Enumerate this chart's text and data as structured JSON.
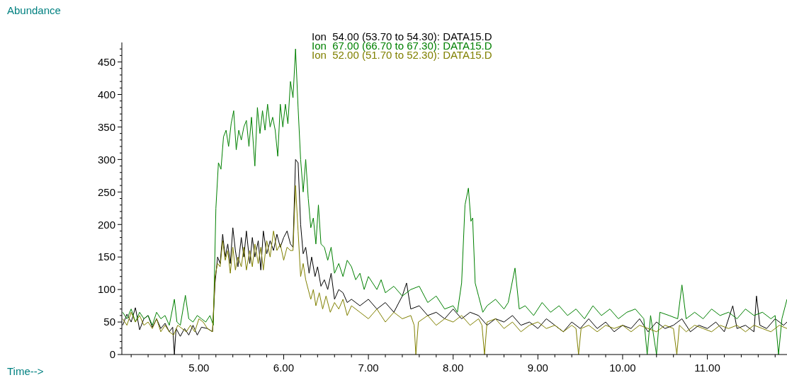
{
  "chart_data": {
    "type": "line",
    "annotations": [
      "Time-->"
    ],
    "ylabel": "Abundance",
    "xlim": [
      4.09,
      11.94
    ],
    "ylim": [
      0,
      480
    ],
    "xticks": [
      {
        "value": 4.2,
        "label": null
      },
      {
        "value": 4.4,
        "label": null
      },
      {
        "value": 4.6,
        "label": null
      },
      {
        "value": 4.8,
        "label": null
      },
      {
        "value": 5,
        "label": "5.00"
      },
      {
        "value": 5.2,
        "label": null
      },
      {
        "value": 5.4,
        "label": null
      },
      {
        "value": 5.6,
        "label": null
      },
      {
        "value": 5.8,
        "label": null
      },
      {
        "value": 6,
        "label": "6.00"
      },
      {
        "value": 6.2,
        "label": null
      },
      {
        "value": 6.4,
        "label": null
      },
      {
        "value": 6.6,
        "label": null
      },
      {
        "value": 6.8,
        "label": null
      },
      {
        "value": 7,
        "label": "7.00"
      },
      {
        "value": 7.2,
        "label": null
      },
      {
        "value": 7.4,
        "label": null
      },
      {
        "value": 7.6,
        "label": null
      },
      {
        "value": 7.8,
        "label": null
      },
      {
        "value": 8,
        "label": "8.00"
      },
      {
        "value": 8.2,
        "label": null
      },
      {
        "value": 8.4,
        "label": null
      },
      {
        "value": 8.6,
        "label": null
      },
      {
        "value": 8.8,
        "label": null
      },
      {
        "value": 9,
        "label": "9.00"
      },
      {
        "value": 9.2,
        "label": null
      },
      {
        "value": 9.4,
        "label": null
      },
      {
        "value": 9.6,
        "label": null
      },
      {
        "value": 9.8,
        "label": null
      },
      {
        "value": 10,
        "label": "10.00"
      },
      {
        "value": 10.2,
        "label": null
      },
      {
        "value": 10.4,
        "label": null
      },
      {
        "value": 10.6,
        "label": null
      },
      {
        "value": 10.8,
        "label": null
      },
      {
        "value": 11,
        "label": "11.00"
      },
      {
        "value": 11.2,
        "label": null
      },
      {
        "value": 11.4,
        "label": null
      },
      {
        "value": 11.6,
        "label": null
      },
      {
        "value": 11.8,
        "label": null
      }
    ],
    "yticks": [
      0,
      {
        "value": 10,
        "label": null
      },
      {
        "value": 20,
        "label": null
      },
      {
        "value": 30,
        "label": null
      },
      {
        "value": 40,
        "label": null
      },
      50,
      {
        "value": 60,
        "label": null
      },
      {
        "value": 70,
        "label": null
      },
      {
        "value": 80,
        "label": null
      },
      {
        "value": 90,
        "label": null
      },
      100,
      {
        "value": 110,
        "label": null
      },
      {
        "value": 120,
        "label": null
      },
      {
        "value": 130,
        "label": null
      },
      {
        "value": 140,
        "label": null
      },
      150,
      {
        "value": 160,
        "label": null
      },
      {
        "value": 170,
        "label": null
      },
      {
        "value": 180,
        "label": null
      },
      {
        "value": 190,
        "label": null
      },
      200,
      {
        "value": 210,
        "label": null
      },
      {
        "value": 220,
        "label": null
      },
      {
        "value": 230,
        "label": null
      },
      {
        "value": 240,
        "label": null
      },
      250,
      {
        "value": 260,
        "label": null
      },
      {
        "value": 270,
        "label": null
      },
      {
        "value": 280,
        "label": null
      },
      {
        "value": 290,
        "label": null
      },
      300,
      {
        "value": 310,
        "label": null
      },
      {
        "value": 320,
        "label": null
      },
      {
        "value": 330,
        "label": null
      },
      {
        "value": 340,
        "label": null
      },
      350,
      {
        "value": 360,
        "label": null
      },
      {
        "value": 370,
        "label": null
      },
      {
        "value": 380,
        "label": null
      },
      {
        "value": 390,
        "label": null
      },
      400,
      {
        "value": 410,
        "label": null
      },
      {
        "value": 420,
        "label": null
      },
      {
        "value": 430,
        "label": null
      },
      {
        "value": 440,
        "label": null
      },
      450,
      {
        "value": 460,
        "label": null
      },
      {
        "value": 470,
        "label": null
      }
    ],
    "grid": false,
    "legend": "top",
    "marker": "none",
    "line_style": "solid",
    "series": [
      {
        "name": "Ion  54.00 (53.70 to 54.30): DATA15.D",
        "color": "#000000",
        "x": [
          4.1,
          4.15,
          4.2,
          4.25,
          4.3,
          4.35,
          4.4,
          4.45,
          4.5,
          4.55,
          4.6,
          4.65,
          4.69,
          4.71,
          4.73,
          4.78,
          4.83,
          4.88,
          4.93,
          4.98,
          5.03,
          5.1,
          5.16,
          5.19,
          5.22,
          5.25,
          5.28,
          5.31,
          5.34,
          5.37,
          5.4,
          5.43,
          5.46,
          5.5,
          5.53,
          5.56,
          5.6,
          5.63,
          5.66,
          5.7,
          5.73,
          5.76,
          5.8,
          5.84,
          5.88,
          5.92,
          5.96,
          6.0,
          6.04,
          6.08,
          6.11,
          6.14,
          6.17,
          6.2,
          6.23,
          6.26,
          6.3,
          6.33,
          6.37,
          6.4,
          6.44,
          6.48,
          6.52,
          6.56,
          6.6,
          6.65,
          6.7,
          6.75,
          6.8,
          6.9,
          7.0,
          7.1,
          7.2,
          7.3,
          7.4,
          7.45,
          7.5,
          7.6,
          7.7,
          7.8,
          7.9,
          8.0,
          8.1,
          8.2,
          8.3,
          8.4,
          8.5,
          8.6,
          8.7,
          8.8,
          8.9,
          9.0,
          9.1,
          9.2,
          9.3,
          9.4,
          9.5,
          9.6,
          9.7,
          9.8,
          9.9,
          10.0,
          10.1,
          10.2,
          10.3,
          10.4,
          10.5,
          10.6,
          10.7,
          10.8,
          10.9,
          11.0,
          11.1,
          11.2,
          11.3,
          11.35,
          11.45,
          11.55,
          11.58,
          11.62,
          11.7,
          11.8,
          11.9,
          11.94
        ],
        "values": [
          45,
          62,
          50,
          72,
          38,
          55,
          60,
          42,
          55,
          40,
          48,
          35,
          42,
          0,
          40,
          28,
          40,
          30,
          45,
          30,
          42,
          40,
          35,
          110,
          150,
          140,
          185,
          150,
          170,
          140,
          195,
          160,
          135,
          180,
          150,
          190,
          140,
          180,
          150,
          175,
          130,
          190,
          155,
          175,
          160,
          185,
          165,
          180,
          190,
          170,
          165,
          300,
          295,
          200,
          155,
          165,
          125,
          150,
          120,
          135,
          105,
          115,
          100,
          125,
          85,
          100,
          95,
          80,
          85,
          75,
          85,
          70,
          80,
          65,
          90,
          110,
          70,
          75,
          60,
          65,
          55,
          70,
          55,
          65,
          60,
          45,
          55,
          50,
          60,
          45,
          50,
          40,
          55,
          45,
          35,
          50,
          40,
          55,
          40,
          50,
          35,
          45,
          40,
          55,
          35,
          50,
          40,
          45,
          55,
          35,
          45,
          40,
          50,
          35,
          75,
          40,
          45,
          35,
          90,
          45,
          40,
          55,
          45,
          50
        ]
      },
      {
        "name": "Ion  67.00 (66.70 to 67.30): DATA15.D",
        "color": "#008000",
        "x": [
          4.1,
          4.15,
          4.2,
          4.25,
          4.3,
          4.35,
          4.4,
          4.45,
          4.5,
          4.55,
          4.6,
          4.65,
          4.71,
          4.74,
          4.78,
          4.84,
          4.88,
          4.93,
          4.98,
          5.03,
          5.08,
          5.13,
          5.17,
          5.2,
          5.23,
          5.26,
          5.29,
          5.32,
          5.35,
          5.38,
          5.41,
          5.44,
          5.47,
          5.5,
          5.53,
          5.56,
          5.59,
          5.62,
          5.66,
          5.69,
          5.72,
          5.75,
          5.78,
          5.81,
          5.84,
          5.87,
          5.9,
          5.93,
          5.96,
          5.99,
          6.02,
          6.05,
          6.08,
          6.11,
          6.14,
          6.17,
          6.2,
          6.23,
          6.26,
          6.29,
          6.32,
          6.35,
          6.38,
          6.41,
          6.44,
          6.48,
          6.52,
          6.56,
          6.6,
          6.65,
          6.7,
          6.75,
          6.8,
          6.85,
          6.9,
          6.95,
          7.0,
          7.05,
          7.1,
          7.15,
          7.2,
          7.3,
          7.4,
          7.5,
          7.6,
          7.7,
          7.8,
          7.9,
          8.0,
          8.05,
          8.1,
          8.14,
          8.18,
          8.21,
          8.23,
          8.26,
          8.3,
          8.35,
          8.4,
          8.5,
          8.6,
          8.65,
          8.73,
          8.78,
          8.85,
          8.95,
          9.05,
          9.15,
          9.25,
          9.35,
          9.45,
          9.55,
          9.65,
          9.75,
          9.85,
          9.95,
          10.05,
          10.15,
          10.25,
          10.29,
          10.33,
          10.4,
          10.44,
          10.55,
          10.65,
          10.7,
          10.75,
          10.85,
          10.95,
          11.05,
          11.15,
          11.25,
          11.35,
          11.45,
          11.55,
          11.65,
          11.75,
          11.8,
          11.84,
          11.88,
          11.94
        ],
        "values": [
          65,
          55,
          70,
          50,
          65,
          55,
          60,
          45,
          65,
          55,
          60,
          45,
          85,
          50,
          45,
          91,
          55,
          50,
          60,
          55,
          50,
          60,
          45,
          225,
          295,
          285,
          335,
          345,
          320,
          355,
          375,
          315,
          345,
          330,
          350,
          360,
          320,
          365,
          290,
          380,
          340,
          375,
          345,
          385,
          350,
          365,
          345,
          305,
          385,
          350,
          385,
          355,
          420,
          395,
          470,
          380,
          300,
          250,
          300,
          240,
          195,
          210,
          170,
          230,
          170,
          165,
          145,
          165,
          125,
          140,
          120,
          145,
          135,
          115,
          125,
          100,
          120,
          110,
          100,
          115,
          95,
          105,
          90,
          100,
          105,
          80,
          90,
          70,
          75,
          65,
          110,
          230,
          256,
          205,
          210,
          110,
          90,
          65,
          75,
          85,
          70,
          80,
          133,
          70,
          75,
          60,
          80,
          65,
          75,
          60,
          70,
          55,
          75,
          60,
          70,
          55,
          65,
          70,
          55,
          0,
          60,
          0,
          65,
          60,
          55,
          107,
          55,
          65,
          55,
          70,
          60,
          65,
          55,
          70,
          60,
          65,
          55,
          60,
          0,
          55,
          85
        ]
      },
      {
        "name": "Ion  52.00 (51.70 to 52.30): DATA15.D",
        "color": "#808000",
        "x": [
          4.1,
          4.15,
          4.2,
          4.25,
          4.3,
          4.35,
          4.4,
          4.45,
          4.5,
          4.55,
          4.6,
          4.65,
          4.7,
          4.75,
          4.8,
          4.85,
          4.9,
          4.95,
          5.0,
          5.05,
          5.1,
          5.16,
          5.19,
          5.22,
          5.25,
          5.28,
          5.31,
          5.34,
          5.37,
          5.4,
          5.43,
          5.46,
          5.5,
          5.53,
          5.56,
          5.6,
          5.63,
          5.66,
          5.7,
          5.73,
          5.76,
          5.8,
          5.84,
          5.88,
          5.92,
          5.96,
          6.0,
          6.04,
          6.08,
          6.11,
          6.14,
          6.17,
          6.2,
          6.23,
          6.26,
          6.29,
          6.32,
          6.35,
          6.38,
          6.42,
          6.46,
          6.5,
          6.55,
          6.6,
          6.65,
          6.7,
          6.75,
          6.8,
          6.9,
          7.0,
          7.1,
          7.2,
          7.3,
          7.4,
          7.5,
          7.54,
          7.56,
          7.59,
          7.7,
          7.8,
          7.9,
          8.0,
          8.1,
          8.2,
          8.3,
          8.34,
          8.37,
          8.4,
          8.5,
          8.6,
          8.7,
          8.8,
          8.9,
          9.0,
          9.1,
          9.2,
          9.3,
          9.4,
          9.45,
          9.48,
          9.51,
          9.6,
          9.7,
          9.8,
          9.9,
          10.0,
          10.1,
          10.2,
          10.3,
          10.4,
          10.5,
          10.6,
          10.64,
          10.67,
          10.75,
          10.85,
          10.95,
          11.05,
          11.15,
          11.25,
          11.35,
          11.45,
          11.55,
          11.65,
          11.75,
          11.85,
          11.94
        ],
        "values": [
          55,
          45,
          65,
          50,
          60,
          45,
          50,
          40,
          55,
          35,
          45,
          35,
          30,
          45,
          40,
          35,
          45,
          35,
          55,
          50,
          40,
          35,
          120,
          140,
          135,
          175,
          145,
          160,
          125,
          165,
          130,
          150,
          135,
          165,
          130,
          160,
          135,
          170,
          140,
          165,
          130,
          175,
          150,
          190,
          160,
          170,
          145,
          165,
          160,
          160,
          260,
          190,
          120,
          140,
          115,
          100,
          85,
          100,
          75,
          95,
          70,
          90,
          65,
          80,
          70,
          85,
          60,
          75,
          65,
          55,
          70,
          50,
          65,
          55,
          60,
          45,
          0,
          50,
          60,
          45,
          55,
          50,
          60,
          45,
          55,
          45,
          0,
          50,
          55,
          40,
          50,
          35,
          45,
          50,
          40,
          45,
          35,
          45,
          40,
          0,
          40,
          45,
          35,
          45,
          40,
          45,
          35,
          45,
          40,
          35,
          45,
          40,
          0,
          45,
          35,
          45,
          40,
          35,
          45,
          40,
          45,
          35,
          45,
          40,
          35,
          45,
          40
        ]
      }
    ]
  }
}
